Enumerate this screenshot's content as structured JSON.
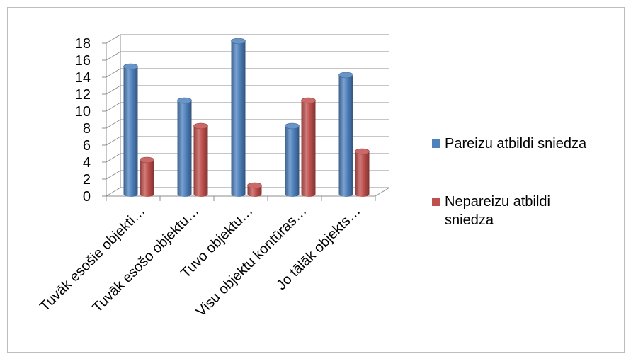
{
  "chart_data": {
    "type": "bar",
    "categories": [
      "Tuvāk esošie objekti…",
      "Tuvāk esošo objektu…",
      "Tuvo objektu…",
      "Visu objektu kontūras…",
      "Jo tālāk objekts…"
    ],
    "series": [
      {
        "name": "Pareizu atbildi sniedza",
        "color": "#4f81bd",
        "values": [
          15,
          11,
          18,
          8,
          14
        ]
      },
      {
        "name": "Nepareizu atbildi sniedza",
        "color": "#c0504d",
        "values": [
          4,
          8,
          1,
          11,
          5
        ]
      }
    ],
    "yticks": [
      0,
      2,
      4,
      6,
      8,
      10,
      12,
      14,
      16,
      18
    ],
    "ylim": [
      0,
      18
    ],
    "grid": true,
    "legend_position": "right"
  }
}
